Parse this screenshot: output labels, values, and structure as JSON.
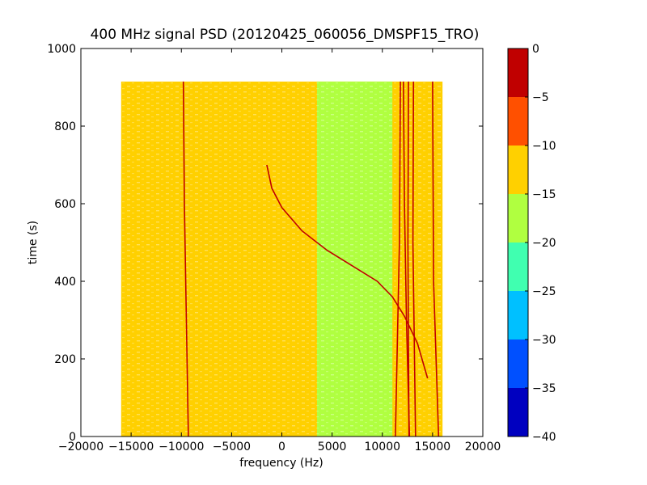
{
  "chart_data": {
    "type": "heatmap",
    "title": "400 MHz signal PSD (20120425_060056_DMSPF15_TRO)",
    "xlabel": "frequency (Hz)",
    "ylabel": "time (s)",
    "xlim": [
      -20000,
      20000
    ],
    "ylim": [
      0,
      1000
    ],
    "xticks": [
      -20000,
      -15000,
      -10000,
      -5000,
      0,
      5000,
      10000,
      15000,
      20000
    ],
    "xtick_labels": [
      "−20000",
      "−15000",
      "−10000",
      "−5000",
      "0",
      "5000",
      "10000",
      "15000",
      "20000"
    ],
    "yticks": [
      0,
      200,
      400,
      600,
      800,
      1000
    ],
    "ytick_labels": [
      "0",
      "200",
      "400",
      "600",
      "800",
      "1000"
    ],
    "data_extent": {
      "x": [
        -16000,
        16000
      ],
      "y": [
        0,
        915
      ]
    },
    "background_level": -12.5,
    "regions": [
      {
        "x": [
          3500,
          11000
        ],
        "level": -17.5
      }
    ],
    "lines": [
      {
        "name": "",
        "level": -5,
        "points": [
          [
            -9800,
            915
          ],
          [
            -9700,
            600
          ],
          [
            -9300,
            0
          ]
        ]
      },
      {
        "name": "",
        "level": -5,
        "points": [
          [
            -1500,
            700
          ],
          [
            -1000,
            640
          ],
          [
            0,
            590
          ],
          [
            2000,
            530
          ],
          [
            4500,
            480
          ],
          [
            7000,
            440
          ],
          [
            9500,
            400
          ],
          [
            11000,
            360
          ],
          [
            12200,
            310
          ],
          [
            13500,
            240
          ],
          [
            14500,
            150
          ]
        ]
      },
      {
        "name": "",
        "level": -5,
        "points": [
          [
            11800,
            915
          ],
          [
            11700,
            500
          ],
          [
            11300,
            0
          ]
        ]
      },
      {
        "name": "",
        "level": 0,
        "points": [
          [
            12100,
            915
          ],
          [
            12200,
            600
          ],
          [
            12400,
            300
          ],
          [
            12700,
            0
          ]
        ]
      },
      {
        "name": "",
        "level": 0,
        "points": [
          [
            12600,
            915
          ],
          [
            12550,
            500
          ],
          [
            12650,
            0
          ]
        ]
      },
      {
        "name": "",
        "level": -5,
        "points": [
          [
            13100,
            915
          ],
          [
            13050,
            500
          ],
          [
            13300,
            0
          ]
        ]
      },
      {
        "name": "",
        "level": 0,
        "points": [
          [
            15000,
            915
          ],
          [
            15100,
            400
          ],
          [
            15600,
            0
          ]
        ]
      }
    ],
    "colorbar": {
      "boundaries": [
        -40,
        -35,
        -30,
        -25,
        -20,
        -15,
        -10,
        -5,
        0
      ],
      "tick_labels": [
        "−40",
        "−35",
        "−30",
        "−25",
        "−20",
        "−15",
        "−10",
        "−5",
        "0"
      ],
      "colors": [
        "#0000c0",
        "#0050ff",
        "#00c0ff",
        "#40ffb0",
        "#b0ff40",
        "#ffd000",
        "#ff5000",
        "#c00000"
      ]
    }
  }
}
